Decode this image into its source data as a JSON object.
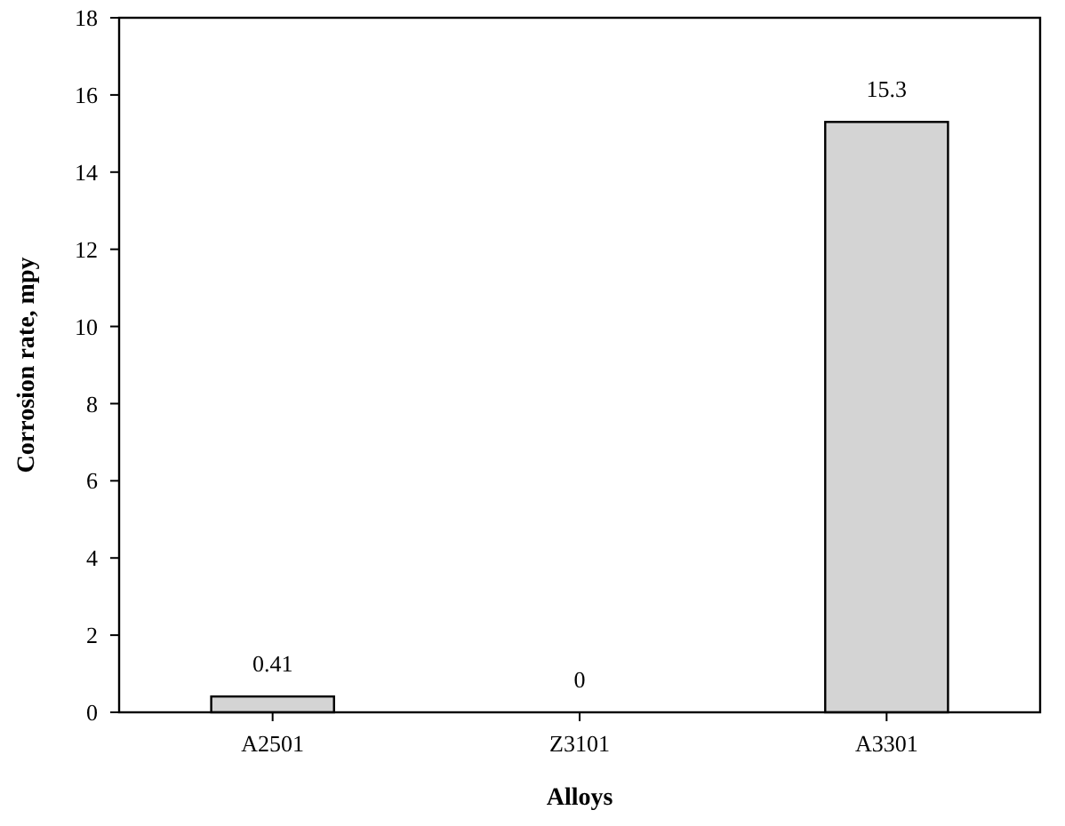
{
  "chart_data": {
    "type": "bar",
    "xlabel": "Alloys",
    "ylabel": "Corrosion rate, mpy",
    "categories": [
      "A2501",
      "Z3101",
      "A3301"
    ],
    "values": [
      0.41,
      0,
      15.3
    ],
    "color": "#d4d4d4",
    "ylim": [
      0,
      18
    ],
    "yticks": [
      0,
      2,
      4,
      6,
      8,
      10,
      12,
      14,
      16,
      18
    ],
    "grid": false,
    "data_labels": true
  }
}
